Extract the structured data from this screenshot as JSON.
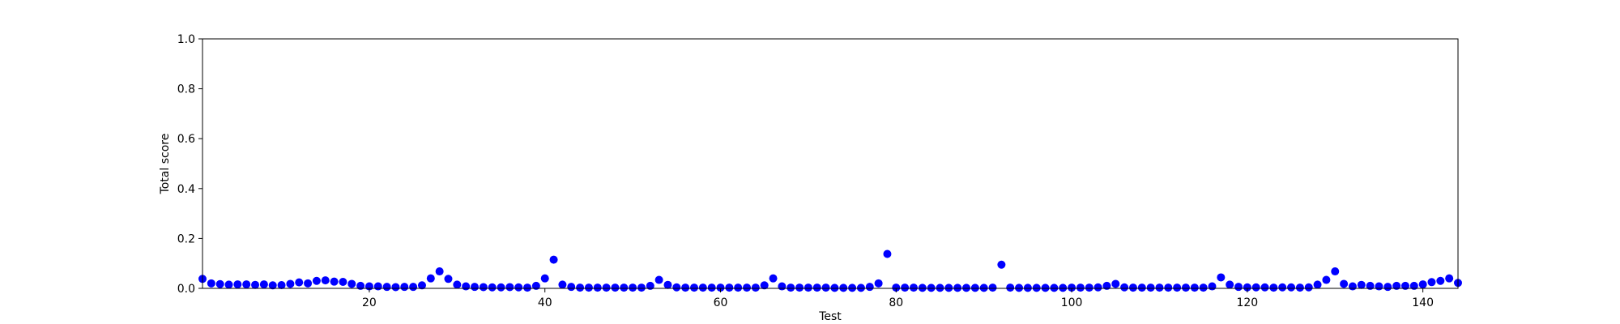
{
  "chart_data": {
    "type": "scatter",
    "title": "",
    "xlabel": "Test",
    "ylabel": "Total score",
    "xlim": [
      1,
      144
    ],
    "ylim": [
      0,
      1.0
    ],
    "xticks": [
      20,
      40,
      60,
      80,
      100,
      120,
      140
    ],
    "yticks": [
      0.0,
      0.2,
      0.4,
      0.6,
      0.8,
      1.0
    ],
    "ytick_labels": [
      "0.0",
      "0.2",
      "0.4",
      "0.6",
      "0.8",
      "1.0"
    ],
    "grid": false,
    "marker_color": "#0000ff",
    "x": [
      1,
      2,
      3,
      4,
      5,
      6,
      7,
      8,
      9,
      10,
      11,
      12,
      13,
      14,
      15,
      16,
      17,
      18,
      19,
      20,
      21,
      22,
      23,
      24,
      25,
      26,
      27,
      28,
      29,
      30,
      31,
      32,
      33,
      34,
      35,
      36,
      37,
      38,
      39,
      40,
      41,
      42,
      43,
      44,
      45,
      46,
      47,
      48,
      49,
      50,
      51,
      52,
      53,
      54,
      55,
      56,
      57,
      58,
      59,
      60,
      61,
      62,
      63,
      64,
      65,
      66,
      67,
      68,
      69,
      70,
      71,
      72,
      73,
      74,
      75,
      76,
      77,
      78,
      79,
      80,
      81,
      82,
      83,
      84,
      85,
      86,
      87,
      88,
      89,
      90,
      91,
      92,
      93,
      94,
      95,
      96,
      97,
      98,
      99,
      100,
      101,
      102,
      103,
      104,
      105,
      106,
      107,
      108,
      109,
      110,
      111,
      112,
      113,
      114,
      115,
      116,
      117,
      118,
      119,
      120,
      121,
      122,
      123,
      124,
      125,
      126,
      127,
      128,
      129,
      130,
      131,
      132,
      133,
      134,
      135,
      136,
      137,
      138,
      139,
      140,
      141,
      142,
      143,
      144
    ],
    "y": [
      0.038,
      0.02,
      0.017,
      0.015,
      0.016,
      0.016,
      0.014,
      0.016,
      0.012,
      0.013,
      0.018,
      0.024,
      0.02,
      0.03,
      0.032,
      0.027,
      0.026,
      0.018,
      0.01,
      0.008,
      0.008,
      0.006,
      0.005,
      0.006,
      0.006,
      0.012,
      0.04,
      0.068,
      0.038,
      0.015,
      0.008,
      0.006,
      0.005,
      0.004,
      0.004,
      0.005,
      0.004,
      0.003,
      0.01,
      0.04,
      0.115,
      0.015,
      0.006,
      0.003,
      0.003,
      0.003,
      0.003,
      0.003,
      0.003,
      0.003,
      0.003,
      0.01,
      0.034,
      0.014,
      0.004,
      0.003,
      0.003,
      0.003,
      0.003,
      0.003,
      0.003,
      0.003,
      0.003,
      0.003,
      0.012,
      0.04,
      0.008,
      0.003,
      0.003,
      0.003,
      0.003,
      0.003,
      0.002,
      0.002,
      0.002,
      0.002,
      0.006,
      0.02,
      0.138,
      0.003,
      0.003,
      0.003,
      0.002,
      0.002,
      0.002,
      0.002,
      0.002,
      0.002,
      0.002,
      0.002,
      0.003,
      0.095,
      0.003,
      0.002,
      0.002,
      0.002,
      0.002,
      0.002,
      0.002,
      0.003,
      0.003,
      0.003,
      0.004,
      0.01,
      0.018,
      0.004,
      0.003,
      0.003,
      0.003,
      0.003,
      0.003,
      0.003,
      0.003,
      0.003,
      0.003,
      0.008,
      0.044,
      0.015,
      0.006,
      0.004,
      0.004,
      0.004,
      0.003,
      0.004,
      0.004,
      0.003,
      0.004,
      0.015,
      0.034,
      0.068,
      0.018,
      0.008,
      0.014,
      0.01,
      0.008,
      0.006,
      0.01,
      0.01,
      0.01,
      0.016,
      0.025,
      0.03,
      0.04,
      0.022
    ]
  }
}
